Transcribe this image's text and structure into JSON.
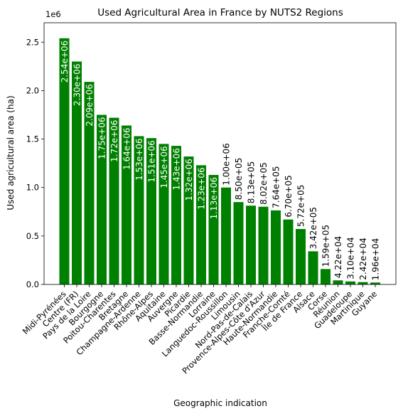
{
  "chart_data": {
    "type": "bar",
    "title": "Used Agricultural Area in France by NUTS2 Regions",
    "xlabel": "Geographic indication",
    "ylabel": "Used agricultural area (ha)",
    "offset_label": "1e6",
    "ylim": [
      0,
      2.7
    ],
    "yticks": [
      0.0,
      0.5,
      1.0,
      1.5,
      2.0,
      2.5
    ],
    "ytick_labels": [
      "0.0",
      "0.5",
      "1.0",
      "1.5",
      "2.0",
      "2.5"
    ],
    "grid": false,
    "bar_color": "#008000",
    "categories": [
      "Midi-Pyrénées",
      "Centre (FR)",
      "Pays de la Loire",
      "Bourgogne",
      "Poitou-Charentes",
      "Bretagne",
      "Champagne-Ardenne",
      "Rhône-Alpes",
      "Aquitaine",
      "Auvergne",
      "Picardie",
      "Basse-Normandie",
      "Lorraine",
      "Languedoc-Roussillon",
      "Limousin",
      "Nord-Pas-de-Calais",
      "Provence-Alpes-Côte d'Azur",
      "Haute-Normandie",
      "Franche-Comté",
      "Île de France",
      "Alsace",
      "Corse",
      "Réunion",
      "Guadeloupe",
      "Martinique",
      "Guyane"
    ],
    "values": [
      2540000,
      2300000,
      2090000,
      1750000,
      1720000,
      1640000,
      1530000,
      1510000,
      1450000,
      1430000,
      1320000,
      1230000,
      1130000,
      1000000,
      850000,
      813000,
      802000,
      764000,
      670000,
      572000,
      342000,
      159000,
      42200,
      31000,
      24200,
      19600
    ],
    "data_labels": [
      "2.54e+06",
      "2.30e+06",
      "2.09e+06",
      "1.75e+06",
      "1.72e+06",
      "1.64e+06",
      "1.53e+06",
      "1.51e+06",
      "1.45e+06",
      "1.43e+06",
      "1.32e+06",
      "1.23e+06",
      "1.13e+06",
      "1.00e+06",
      "8.50e+05",
      "8.13e+05",
      "8.02e+05",
      "7.64e+05",
      "6.70e+05",
      "5.72e+05",
      "3.42e+05",
      "1.59e+05",
      "4.22e+04",
      "3.10e+04",
      "2.42e+04",
      "1.96e+04"
    ],
    "label_color_inside": "#ffffff",
    "label_color_outside": "#000000"
  }
}
